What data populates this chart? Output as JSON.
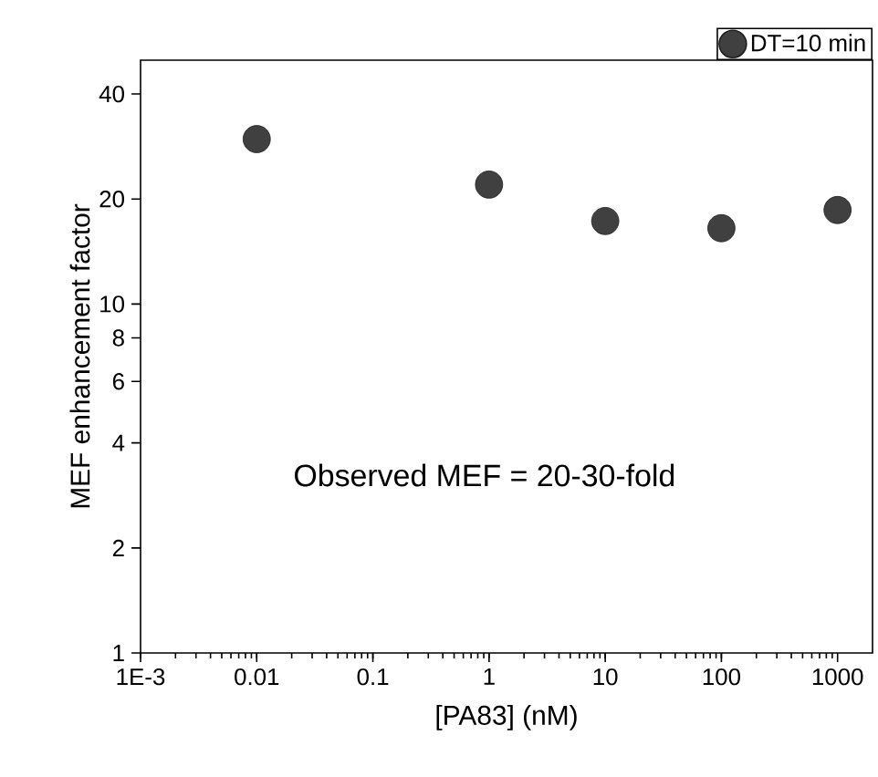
{
  "chart_data": {
    "type": "scatter",
    "xlabel": "[PA83] (nM)",
    "ylabel": "MEF enhancement factor",
    "x": [
      0.01,
      1,
      10,
      100,
      1000
    ],
    "series": [
      {
        "name": "DT=10 min",
        "color": "#1e1e1e",
        "values": [
          29.7,
          22,
          17.3,
          16.5,
          18.6
        ]
      }
    ],
    "log": "xy",
    "xlim": [
      0.001,
      2000
    ],
    "ylim": [
      1,
      50
    ],
    "xticks": [
      {
        "value": 0.001,
        "label": "1E-3"
      },
      0.01,
      0.1,
      1,
      10,
      100,
      1000
    ],
    "yticks": [
      1,
      2,
      4,
      6,
      8,
      10,
      20,
      40
    ],
    "marker": "circle",
    "legend": "top right",
    "grid": false,
    "annotations": [
      "Observed MEF = 20-30-fold"
    ]
  }
}
